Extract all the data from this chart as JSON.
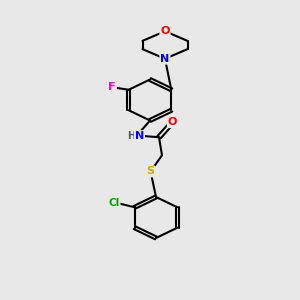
{
  "background_color": "#e8e8e8",
  "bond_color": "#000000",
  "atom_colors": {
    "O": "#ff0000",
    "N": "#0000ff",
    "F": "#ff00ff",
    "S": "#ccaa00",
    "Cl": "#00aa00",
    "C": "#000000",
    "H": "#555555"
  }
}
